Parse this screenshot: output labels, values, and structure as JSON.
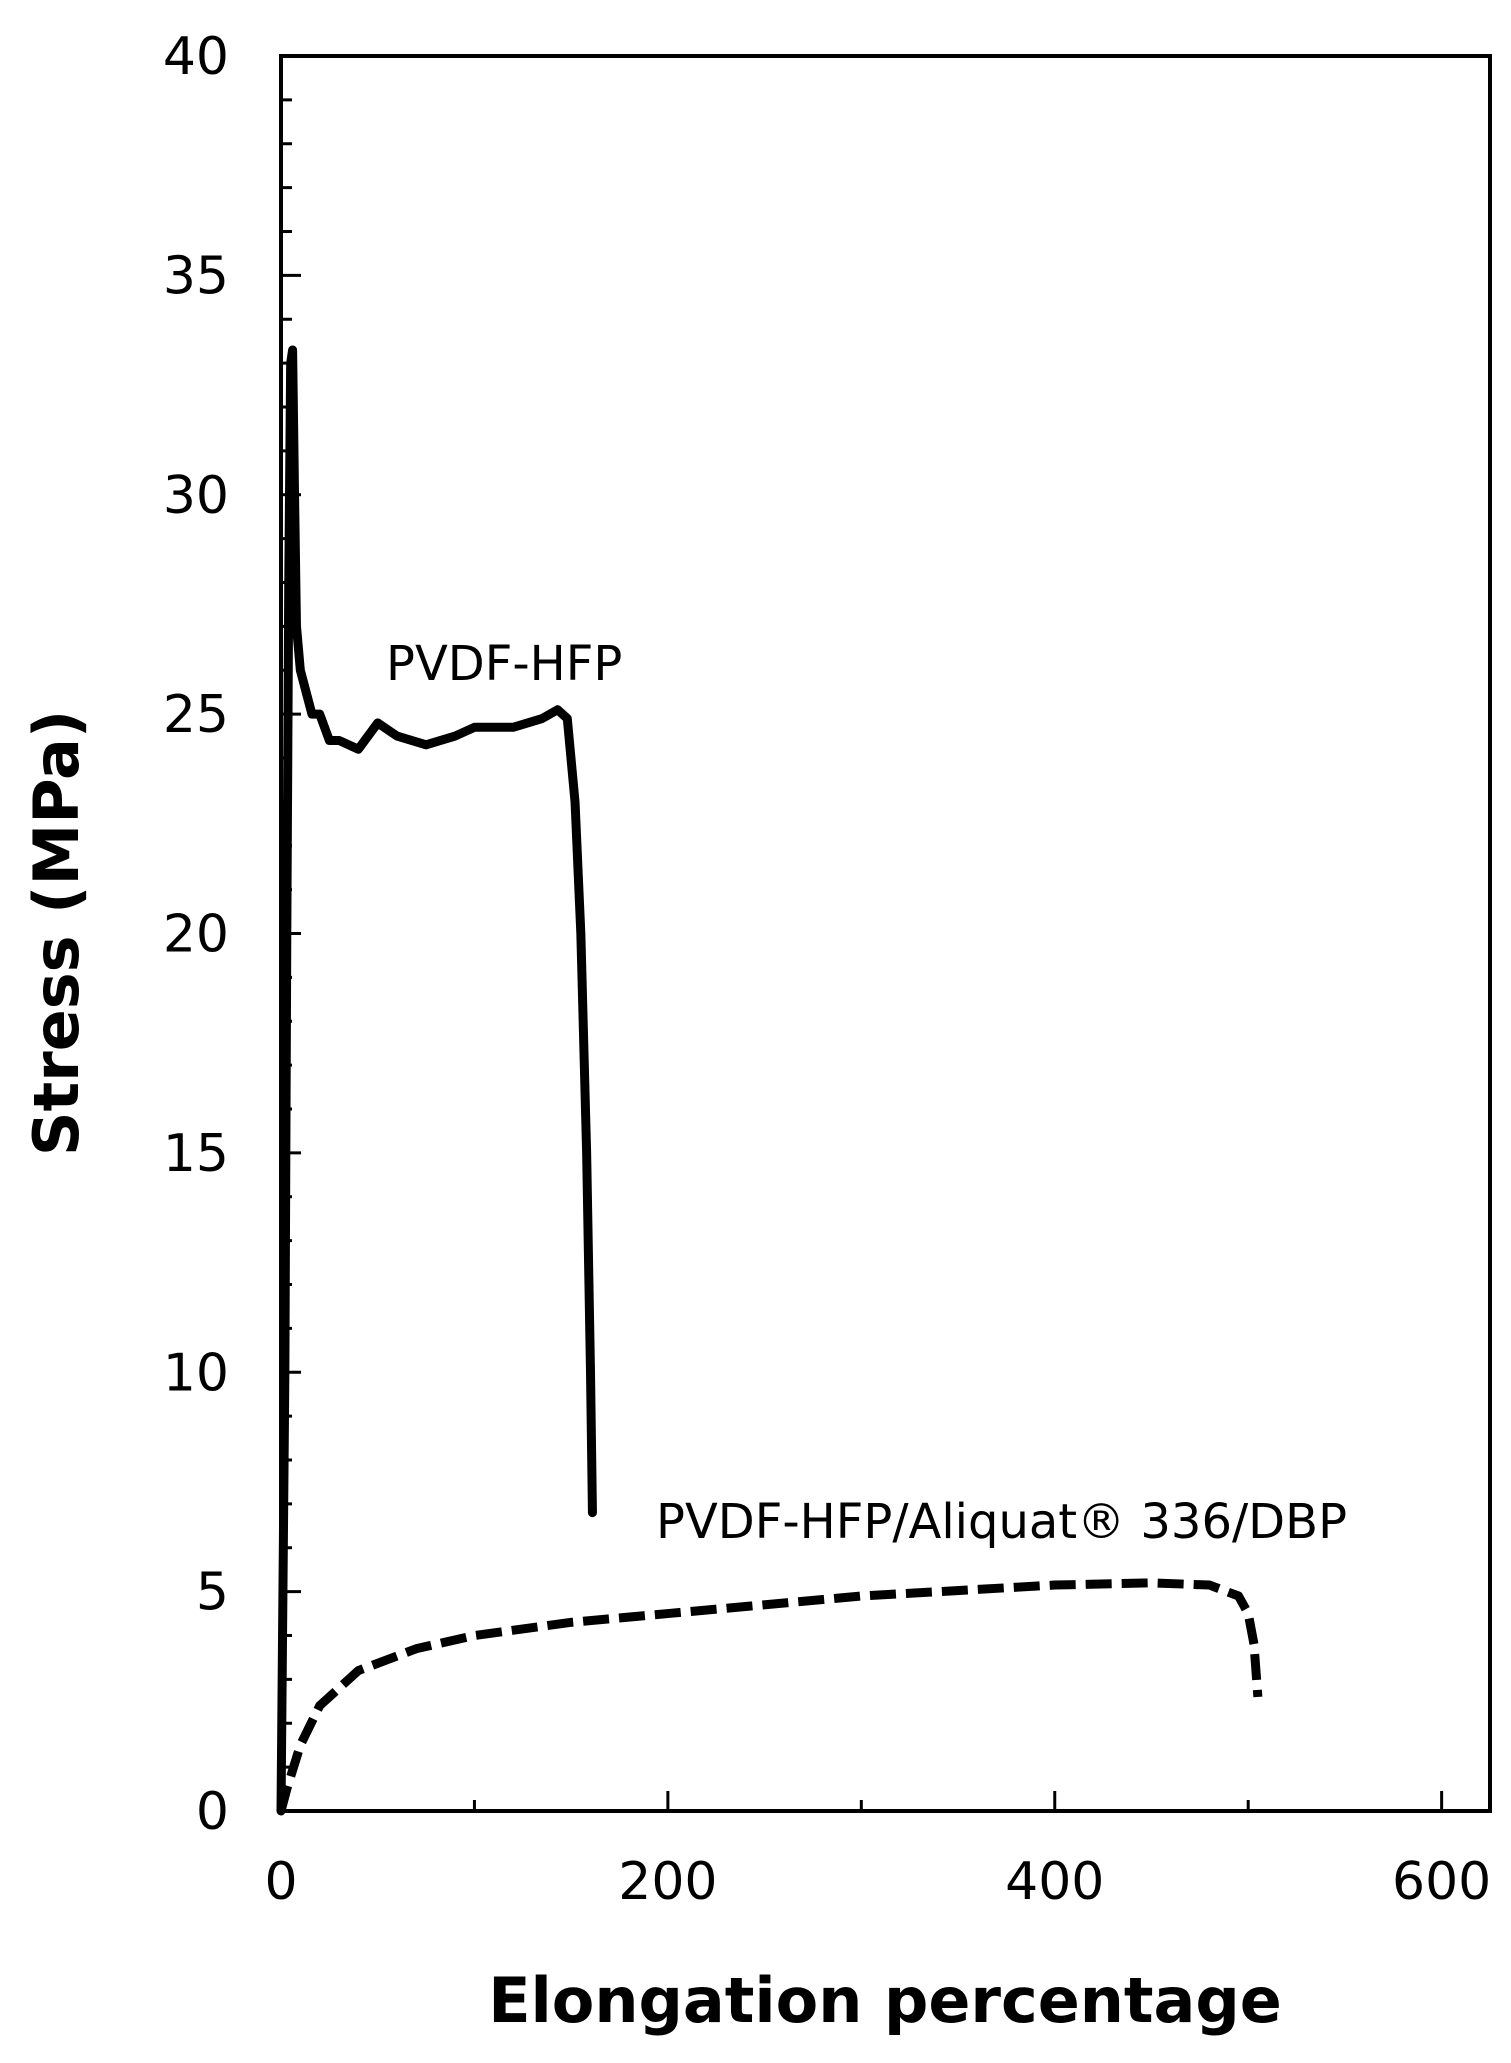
{
  "chart_data": {
    "type": "line",
    "xlabel": "Elongation percentage",
    "ylabel": "Stress (MPa)",
    "xlim": [
      0,
      625
    ],
    "ylim": [
      0,
      40
    ],
    "xticks": [
      0,
      200,
      400,
      600
    ],
    "xminorticks": [
      100,
      300,
      500
    ],
    "yticks": [
      0,
      5,
      10,
      15,
      20,
      25,
      30,
      35,
      40
    ],
    "yminorticks": [
      1,
      2,
      3,
      4,
      6,
      7,
      8,
      9,
      11,
      12,
      13,
      14,
      16,
      17,
      18,
      19,
      21,
      22,
      23,
      24,
      26,
      27,
      28,
      29,
      31,
      32,
      33,
      34,
      36,
      37,
      38,
      39
    ],
    "grid": false,
    "series": [
      {
        "name": "PVDF-HFP",
        "color": "#000000",
        "style": "solid",
        "x": [
          0,
          2,
          3,
          4,
          5,
          6,
          7,
          8,
          10,
          13,
          16,
          20,
          25,
          30,
          40,
          45,
          50,
          60,
          75,
          90,
          100,
          120,
          135,
          143,
          148,
          152,
          155,
          158,
          160,
          161
        ],
        "values": [
          0,
          10,
          20,
          28,
          33,
          33.3,
          30,
          27,
          26,
          25.5,
          25,
          25,
          24.4,
          24.4,
          24.2,
          24.5,
          24.8,
          24.5,
          24.3,
          24.5,
          24.7,
          24.7,
          24.9,
          25.1,
          24.9,
          23,
          20,
          15,
          10,
          6.8
        ]
      },
      {
        "name": "PVDF-HFP/Aliquat® 336/DBP",
        "color": "#000000",
        "style": "dashed",
        "x": [
          0,
          3,
          10,
          20,
          40,
          70,
          100,
          150,
          200,
          300,
          400,
          450,
          480,
          495,
          500,
          503,
          505
        ],
        "values": [
          0,
          0.5,
          1.5,
          2.4,
          3.2,
          3.7,
          4.0,
          4.3,
          4.5,
          4.9,
          5.15,
          5.2,
          5.15,
          4.9,
          4.5,
          3.8,
          2.6
        ]
      }
    ]
  }
}
